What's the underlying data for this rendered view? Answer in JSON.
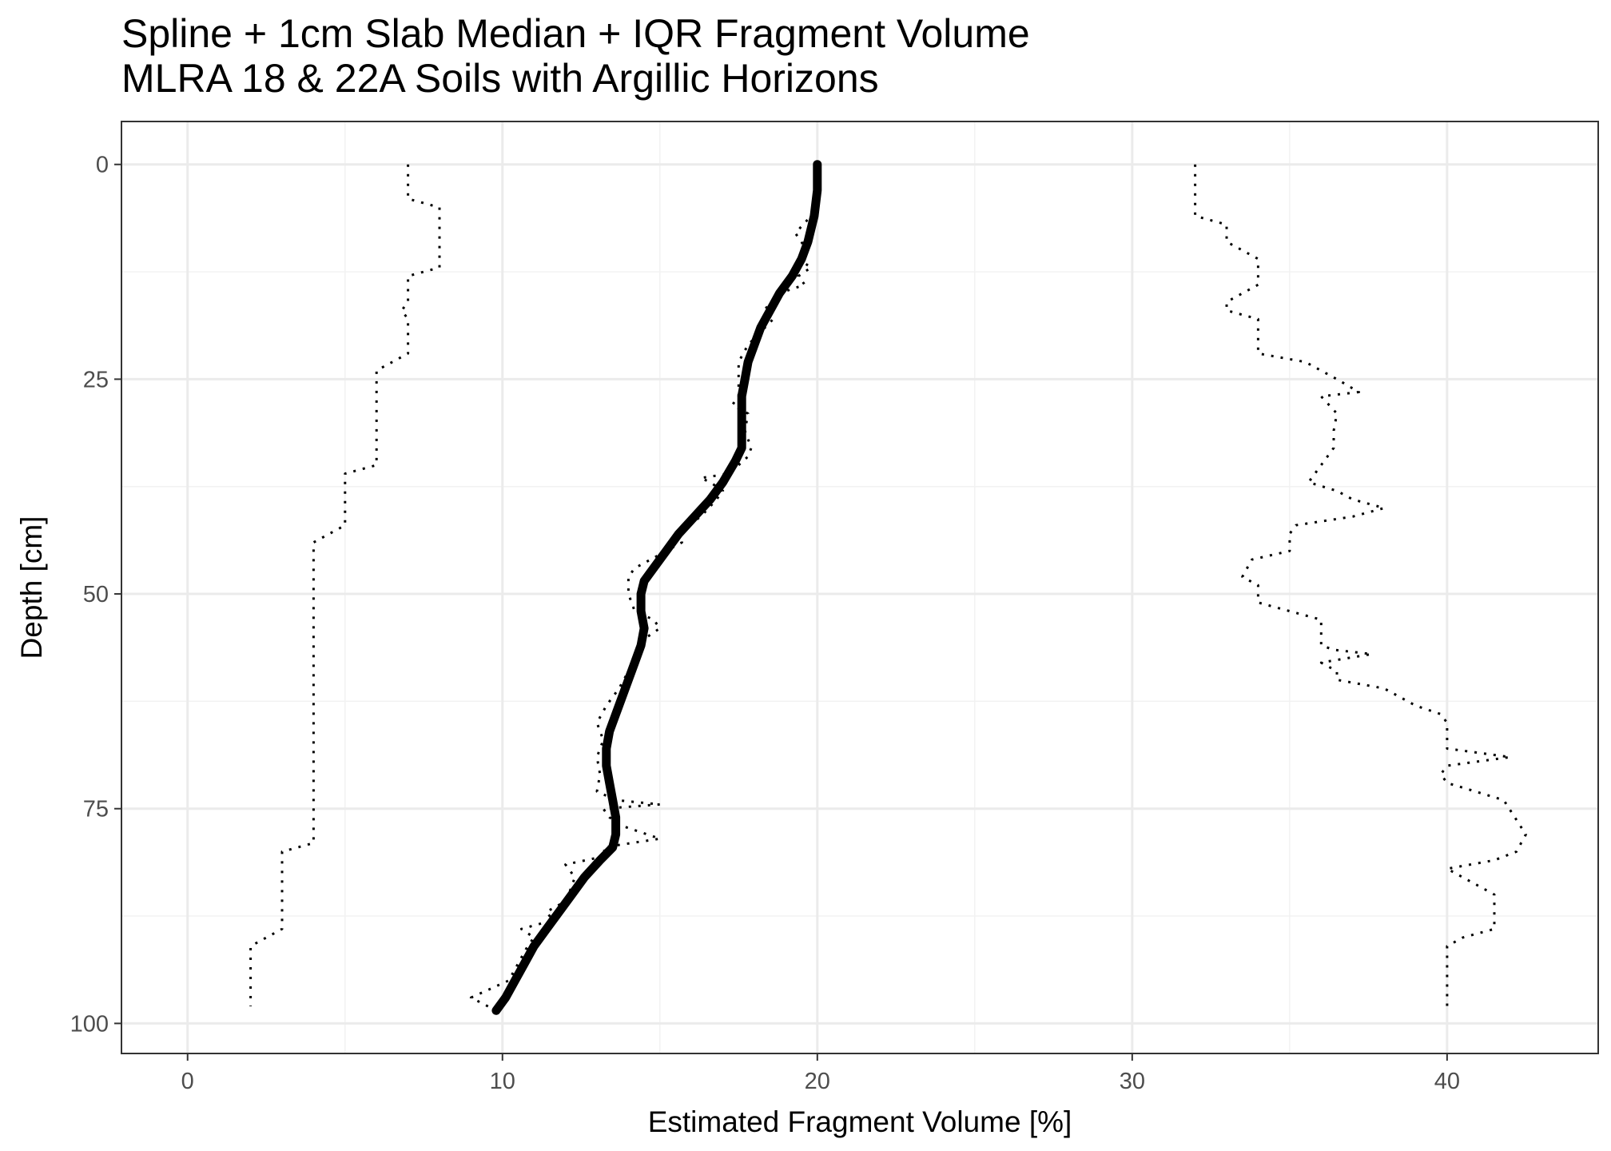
{
  "chart_data": {
    "type": "line",
    "title": "Spline + 1cm Slab Median + IQR Fragment Volume",
    "subtitle": "MLRA 18 & 22A Soils with Argillic Horizons",
    "xlabel": "Estimated Fragment Volume [%]",
    "ylabel": "Depth [cm]",
    "xlim": [
      -2.1,
      44.8
    ],
    "ylim": [
      -5,
      103.5
    ],
    "y_reversed": true,
    "grid": true,
    "legend": "none",
    "x_ticks": [
      "0",
      "10",
      "20",
      "30",
      "40"
    ],
    "y_ticks": [
      "0",
      "25",
      "50",
      "75",
      "100"
    ],
    "series": [
      {
        "style": "solid-thick",
        "color": "#000000",
        "points": [
          [
            20,
            0
          ],
          [
            20,
            3
          ],
          [
            19.9,
            6
          ],
          [
            19.7,
            9
          ],
          [
            19.5,
            11
          ],
          [
            19.2,
            13
          ],
          [
            18.8,
            15
          ],
          [
            18.5,
            17
          ],
          [
            18.2,
            19
          ],
          [
            18,
            21
          ],
          [
            17.8,
            23
          ],
          [
            17.7,
            25
          ],
          [
            17.6,
            27
          ],
          [
            17.6,
            29
          ],
          [
            17.6,
            31
          ],
          [
            17.6,
            33
          ],
          [
            17.4,
            34.5
          ],
          [
            17,
            37
          ],
          [
            16.6,
            39
          ],
          [
            16.1,
            41
          ],
          [
            15.6,
            43
          ],
          [
            15.2,
            45
          ],
          [
            14.8,
            47
          ],
          [
            14.5,
            48.5
          ],
          [
            14.4,
            50
          ],
          [
            14.4,
            52
          ],
          [
            14.5,
            54
          ],
          [
            14.4,
            56
          ],
          [
            14.2,
            58
          ],
          [
            14,
            60
          ],
          [
            13.8,
            62
          ],
          [
            13.6,
            64
          ],
          [
            13.4,
            66
          ],
          [
            13.3,
            68
          ],
          [
            13.3,
            70
          ],
          [
            13.4,
            72
          ],
          [
            13.5,
            74
          ],
          [
            13.6,
            76
          ],
          [
            13.6,
            78
          ],
          [
            13.5,
            79.5
          ],
          [
            13.1,
            81
          ],
          [
            12.6,
            83
          ],
          [
            12.2,
            85
          ],
          [
            11.8,
            87
          ],
          [
            11.4,
            89
          ],
          [
            11,
            91
          ],
          [
            10.7,
            93
          ],
          [
            10.4,
            95
          ],
          [
            10.1,
            97
          ],
          [
            9.8,
            98.5
          ]
        ]
      },
      {
        "style": "median-dotted",
        "color": "#000000",
        "points": [
          [
            20,
            0
          ],
          [
            20,
            3
          ],
          [
            19.8,
            6
          ],
          [
            19.3,
            8
          ],
          [
            19.5,
            9
          ],
          [
            19.6,
            10
          ],
          [
            19.4,
            11
          ],
          [
            19.8,
            12
          ],
          [
            19.4,
            13
          ],
          [
            19.6,
            14
          ],
          [
            18.8,
            15
          ],
          [
            18.3,
            17
          ],
          [
            18.6,
            18
          ],
          [
            17.8,
            21
          ],
          [
            17.5,
            23
          ],
          [
            17.5,
            25
          ],
          [
            17.5,
            27
          ],
          [
            17.3,
            28
          ],
          [
            17.8,
            29
          ],
          [
            17.7,
            31
          ],
          [
            17.9,
            33
          ],
          [
            17.8,
            34
          ],
          [
            17.2,
            36
          ],
          [
            16.3,
            36.5
          ],
          [
            16.6,
            37
          ],
          [
            17.0,
            38
          ],
          [
            16.8,
            39
          ],
          [
            16.3,
            41
          ],
          [
            15.5,
            43
          ],
          [
            15.7,
            44
          ],
          [
            15.2,
            45
          ],
          [
            14.7,
            46
          ],
          [
            14.2,
            47
          ],
          [
            14.0,
            48
          ],
          [
            14.0,
            50
          ],
          [
            14.2,
            52
          ],
          [
            14.8,
            53
          ],
          [
            15.0,
            54
          ],
          [
            14.6,
            55
          ],
          [
            14.3,
            57
          ],
          [
            14.0,
            59
          ],
          [
            13.7,
            61
          ],
          [
            13.3,
            63
          ],
          [
            13.0,
            65
          ],
          [
            13.2,
            67
          ],
          [
            13.0,
            69
          ],
          [
            13.1,
            71
          ],
          [
            13.0,
            73
          ],
          [
            13.6,
            74
          ],
          [
            15.0,
            74.5
          ],
          [
            13.2,
            75
          ],
          [
            13.4,
            76
          ],
          [
            13.8,
            77
          ],
          [
            15.0,
            78.5
          ],
          [
            13.2,
            79.5
          ],
          [
            13.3,
            80.5
          ],
          [
            12.0,
            81.5
          ],
          [
            12.3,
            83
          ],
          [
            12.1,
            85
          ],
          [
            11.9,
            86
          ],
          [
            11.4,
            87
          ],
          [
            11.6,
            88
          ],
          [
            10.6,
            89
          ],
          [
            11.0,
            90
          ],
          [
            10.8,
            91
          ],
          [
            10.5,
            93
          ],
          [
            10.2,
            95
          ],
          [
            9.0,
            97
          ],
          [
            9.8,
            98.5
          ]
        ]
      },
      {
        "style": "dotted",
        "color": "#000000",
        "points": [
          [
            7,
            0
          ],
          [
            7,
            4
          ],
          [
            8,
            5
          ],
          [
            8,
            12
          ],
          [
            7,
            13
          ],
          [
            7,
            16
          ],
          [
            6.8,
            17
          ],
          [
            7,
            18
          ],
          [
            7,
            22
          ],
          [
            6,
            24
          ],
          [
            6,
            35
          ],
          [
            5,
            36
          ],
          [
            5,
            42
          ],
          [
            4,
            44
          ],
          [
            4,
            79
          ],
          [
            3,
            80
          ],
          [
            3,
            89
          ],
          [
            2,
            91
          ],
          [
            2,
            98
          ]
        ]
      },
      {
        "style": "dotted",
        "color": "#000000",
        "points": [
          [
            32,
            0
          ],
          [
            32,
            6
          ],
          [
            33,
            7
          ],
          [
            33,
            9
          ],
          [
            34,
            11
          ],
          [
            34,
            14
          ],
          [
            33,
            16
          ],
          [
            33,
            17
          ],
          [
            34,
            18
          ],
          [
            34,
            22
          ],
          [
            35.5,
            23
          ],
          [
            36.5,
            25
          ],
          [
            37.2,
            26.5
          ],
          [
            36,
            27
          ],
          [
            36.5,
            29
          ],
          [
            36.4,
            31
          ],
          [
            36.4,
            33
          ],
          [
            36.0,
            35
          ],
          [
            35.6,
            37
          ],
          [
            36.5,
            38
          ],
          [
            37.0,
            39
          ],
          [
            38,
            40
          ],
          [
            37,
            41
          ],
          [
            35.2,
            42
          ],
          [
            35.0,
            43
          ],
          [
            35.0,
            45
          ],
          [
            33.8,
            46
          ],
          [
            33.5,
            48
          ],
          [
            34,
            49
          ],
          [
            34,
            51
          ],
          [
            35,
            52
          ],
          [
            36,
            53
          ],
          [
            36,
            56
          ],
          [
            36.4,
            56.5
          ],
          [
            37.6,
            57
          ],
          [
            36,
            58
          ],
          [
            36.5,
            59
          ],
          [
            36.5,
            60
          ],
          [
            38,
            61
          ],
          [
            39,
            63
          ],
          [
            39.8,
            64
          ],
          [
            40,
            65
          ],
          [
            40,
            68
          ],
          [
            42.0,
            69
          ],
          [
            40,
            70
          ],
          [
            39.8,
            71
          ],
          [
            40,
            72
          ],
          [
            41.8,
            74
          ],
          [
            42.5,
            78
          ],
          [
            42.2,
            80
          ],
          [
            41.5,
            81
          ],
          [
            40,
            82
          ],
          [
            41,
            84
          ],
          [
            41.5,
            85
          ],
          [
            41.5,
            89
          ],
          [
            40.5,
            90
          ],
          [
            40,
            91
          ],
          [
            40,
            98
          ]
        ]
      }
    ]
  }
}
